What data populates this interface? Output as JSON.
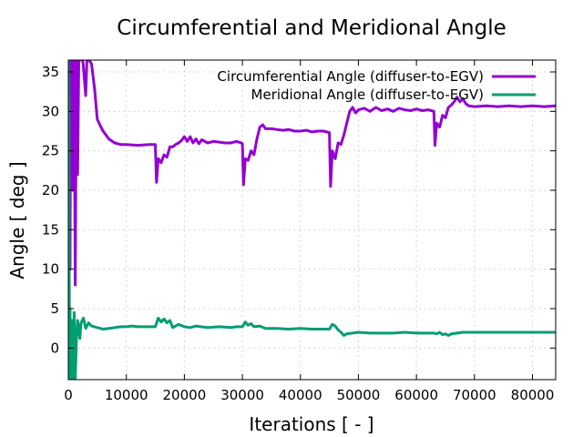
{
  "chart_data": {
    "type": "line",
    "title": "Circumferential and Meridional Angle",
    "xlabel": "Iterations [ - ]",
    "ylabel": "Angle [ deg ]",
    "xlim": [
      0,
      84000
    ],
    "ylim": [
      -4,
      36.5
    ],
    "xticks": [
      0,
      10000,
      20000,
      30000,
      40000,
      50000,
      60000,
      70000,
      80000
    ],
    "yticks": [
      0,
      5,
      10,
      15,
      20,
      25,
      30,
      35
    ],
    "grid": true,
    "legend_position": "top-right",
    "series": [
      {
        "name": "Circumferential Angle (diffuser-to-EGV)",
        "color": "#9400d3",
        "points": [
          [
            0,
            -4
          ],
          [
            100,
            30
          ],
          [
            200,
            36.5
          ],
          [
            300,
            10
          ],
          [
            400,
            36.5
          ],
          [
            600,
            36.5
          ],
          [
            800,
            20
          ],
          [
            1000,
            36.5
          ],
          [
            1200,
            8
          ],
          [
            1400,
            36.5
          ],
          [
            1600,
            22
          ],
          [
            1800,
            36.5
          ],
          [
            2000,
            36.5
          ],
          [
            2500,
            36.5
          ],
          [
            3000,
            32
          ],
          [
            3200,
            36.5
          ],
          [
            3600,
            36.5
          ],
          [
            4000,
            36
          ],
          [
            4500,
            33
          ],
          [
            5000,
            29
          ],
          [
            5500,
            28.2
          ],
          [
            6000,
            27.5
          ],
          [
            6500,
            27
          ],
          [
            7000,
            26.5
          ],
          [
            8000,
            26
          ],
          [
            9000,
            25.8
          ],
          [
            10000,
            25.8
          ],
          [
            12000,
            25.7
          ],
          [
            14000,
            25.8
          ],
          [
            15000,
            25.8
          ],
          [
            15200,
            21
          ],
          [
            15500,
            24
          ],
          [
            16000,
            23.5
          ],
          [
            16500,
            24.5
          ],
          [
            17000,
            24.2
          ],
          [
            17500,
            25.5
          ],
          [
            18000,
            25.5
          ],
          [
            18500,
            25.8
          ],
          [
            19000,
            26
          ],
          [
            19500,
            26.3
          ],
          [
            20000,
            26.8
          ],
          [
            20500,
            26.2
          ],
          [
            21000,
            26.8
          ],
          [
            21500,
            26
          ],
          [
            22000,
            26.5
          ],
          [
            22500,
            25.9
          ],
          [
            23000,
            26.4
          ],
          [
            24000,
            26
          ],
          [
            25000,
            26.2
          ],
          [
            26000,
            26.1
          ],
          [
            27000,
            26
          ],
          [
            28000,
            26
          ],
          [
            29000,
            26.2
          ],
          [
            29800,
            26
          ],
          [
            30000,
            25.9
          ],
          [
            30200,
            20.7
          ],
          [
            30500,
            24
          ],
          [
            31000,
            23.8
          ],
          [
            31500,
            25
          ],
          [
            32000,
            24.5
          ],
          [
            32500,
            26.5
          ],
          [
            33000,
            28
          ],
          [
            33500,
            28.3
          ],
          [
            34000,
            27.8
          ],
          [
            35000,
            27.8
          ],
          [
            36000,
            27.7
          ],
          [
            37000,
            27.6
          ],
          [
            38000,
            27.7
          ],
          [
            39000,
            27.5
          ],
          [
            40000,
            27.5
          ],
          [
            41000,
            27.6
          ],
          [
            42000,
            27.4
          ],
          [
            43000,
            27.5
          ],
          [
            44000,
            27.5
          ],
          [
            45000,
            27.3
          ],
          [
            45200,
            20.5
          ],
          [
            45500,
            25
          ],
          [
            46000,
            24
          ],
          [
            46500,
            26
          ],
          [
            47000,
            25.8
          ],
          [
            47500,
            27
          ],
          [
            48000,
            28.5
          ],
          [
            48500,
            30
          ],
          [
            49000,
            30.5
          ],
          [
            49500,
            29.8
          ],
          [
            50000,
            30.2
          ],
          [
            51000,
            30.4
          ],
          [
            52000,
            30
          ],
          [
            53000,
            30.5
          ],
          [
            54000,
            30.1
          ],
          [
            55000,
            30.3
          ],
          [
            56000,
            30
          ],
          [
            57000,
            30.4
          ],
          [
            58000,
            30.2
          ],
          [
            59000,
            30.1
          ],
          [
            60000,
            30.3
          ],
          [
            61000,
            30.1
          ],
          [
            62000,
            30.2
          ],
          [
            63000,
            30
          ],
          [
            63200,
            25.7
          ],
          [
            63500,
            28.5
          ],
          [
            64000,
            28
          ],
          [
            64500,
            29.5
          ],
          [
            65000,
            29.2
          ],
          [
            65500,
            30.5
          ],
          [
            66000,
            30.8
          ],
          [
            66500,
            31.2
          ],
          [
            67000,
            31.8
          ],
          [
            67500,
            31.2
          ],
          [
            68000,
            31.6
          ],
          [
            68500,
            31
          ],
          [
            69000,
            30.7
          ],
          [
            70000,
            30.6
          ],
          [
            72000,
            30.7
          ],
          [
            74000,
            30.6
          ],
          [
            76000,
            30.7
          ],
          [
            78000,
            30.6
          ],
          [
            80000,
            30.7
          ],
          [
            82000,
            30.6
          ],
          [
            84000,
            30.7
          ]
        ]
      },
      {
        "name": "Meridional Angle (diffuser-to-EGV)",
        "color": "#009e73",
        "points": [
          [
            0,
            36.5
          ],
          [
            100,
            30
          ],
          [
            200,
            -4
          ],
          [
            300,
            5
          ],
          [
            400,
            -4
          ],
          [
            600,
            3.5
          ],
          [
            800,
            -4
          ],
          [
            1000,
            4.5
          ],
          [
            1200,
            -4
          ],
          [
            1400,
            1
          ],
          [
            1600,
            3.5
          ],
          [
            1800,
            2.5
          ],
          [
            2000,
            1.2
          ],
          [
            2200,
            3.2
          ],
          [
            2600,
            3.8
          ],
          [
            3000,
            2.5
          ],
          [
            3500,
            3.2
          ],
          [
            4000,
            2.8
          ],
          [
            5000,
            2.6
          ],
          [
            6000,
            2.4
          ],
          [
            7000,
            2.5
          ],
          [
            8000,
            2.6
          ],
          [
            9000,
            2.7
          ],
          [
            10000,
            2.7
          ],
          [
            11000,
            2.8
          ],
          [
            12000,
            2.7
          ],
          [
            14000,
            2.7
          ],
          [
            15000,
            2.7
          ],
          [
            15500,
            3.8
          ],
          [
            16000,
            3.3
          ],
          [
            16500,
            3.7
          ],
          [
            17000,
            3.2
          ],
          [
            17500,
            3.5
          ],
          [
            18000,
            2.6
          ],
          [
            18500,
            2.8
          ],
          [
            19000,
            3
          ],
          [
            20000,
            2.7
          ],
          [
            21000,
            2.6
          ],
          [
            22000,
            2.8
          ],
          [
            24000,
            2.6
          ],
          [
            26000,
            2.7
          ],
          [
            28000,
            2.6
          ],
          [
            29000,
            2.7
          ],
          [
            30000,
            2.7
          ],
          [
            30500,
            3.3
          ],
          [
            31000,
            2.9
          ],
          [
            31500,
            3.1
          ],
          [
            32000,
            2.7
          ],
          [
            33000,
            2.8
          ],
          [
            34000,
            2.5
          ],
          [
            36000,
            2.5
          ],
          [
            38000,
            2.4
          ],
          [
            40000,
            2.5
          ],
          [
            42000,
            2.4
          ],
          [
            44000,
            2.4
          ],
          [
            45000,
            2.4
          ],
          [
            45500,
            3
          ],
          [
            46000,
            2.8
          ],
          [
            46500,
            2.3
          ],
          [
            47000,
            2
          ],
          [
            47500,
            1.6
          ],
          [
            48000,
            1.8
          ],
          [
            49000,
            1.9
          ],
          [
            50000,
            2
          ],
          [
            52000,
            1.9
          ],
          [
            54000,
            1.9
          ],
          [
            56000,
            1.9
          ],
          [
            58000,
            2
          ],
          [
            60000,
            1.9
          ],
          [
            62000,
            1.9
          ],
          [
            63000,
            1.9
          ],
          [
            63500,
            1.8
          ],
          [
            64000,
            2
          ],
          [
            64500,
            1.7
          ],
          [
            65000,
            1.8
          ],
          [
            65500,
            1.6
          ],
          [
            66000,
            1.8
          ],
          [
            67000,
            1.9
          ],
          [
            68000,
            2
          ],
          [
            70000,
            2
          ],
          [
            72000,
            2
          ],
          [
            74000,
            2
          ],
          [
            76000,
            2
          ],
          [
            78000,
            2
          ],
          [
            80000,
            2
          ],
          [
            82000,
            2
          ],
          [
            84000,
            2
          ]
        ]
      }
    ]
  }
}
